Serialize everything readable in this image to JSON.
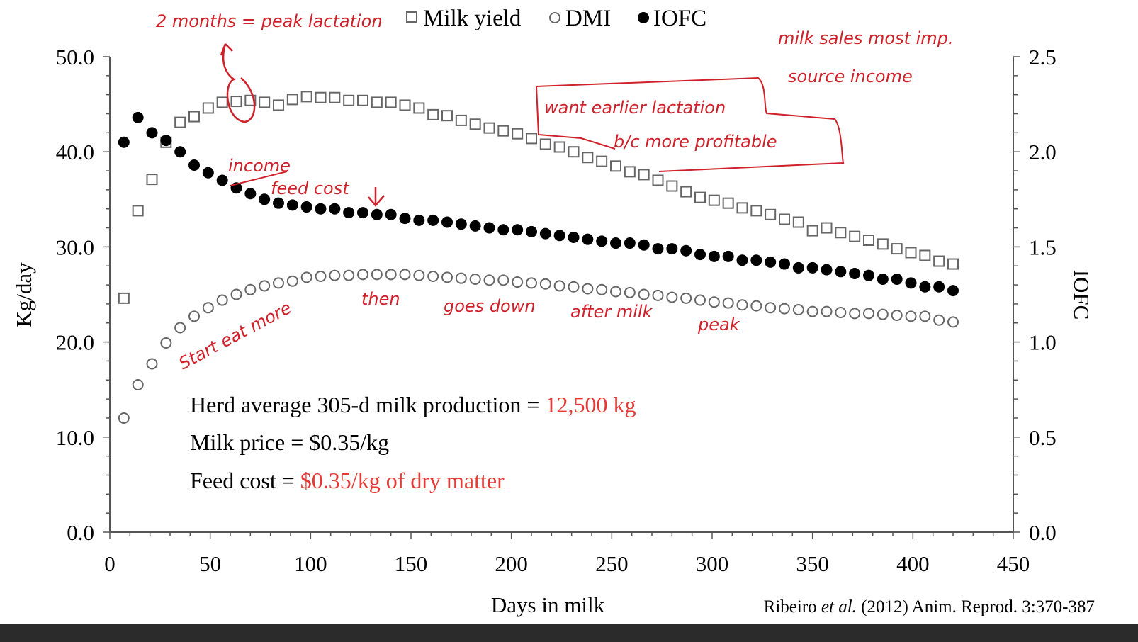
{
  "chart_data": {
    "type": "scatter",
    "xlabel": "Days in milk",
    "ylabel": "Kg/day",
    "y2label": "IOFC",
    "xlim": [
      0,
      450
    ],
    "ylim": [
      0,
      50
    ],
    "y2lim": [
      0,
      2.5
    ],
    "xticks": [
      "0",
      "50",
      "100",
      "150",
      "200",
      "250",
      "300",
      "350",
      "400",
      "450"
    ],
    "yticks": [
      "0.0",
      "10.0",
      "20.0",
      "30.0",
      "40.0",
      "50.0"
    ],
    "y2ticks": [
      "0.0",
      "0.5",
      "1.0",
      "1.5",
      "2.0",
      "2.5"
    ],
    "legend_position": "top-center",
    "x": [
      7,
      14,
      21,
      28,
      35,
      42,
      49,
      56,
      63,
      70,
      77,
      84,
      91,
      98,
      105,
      112,
      119,
      126,
      133,
      140,
      147,
      154,
      161,
      168,
      175,
      182,
      189,
      196,
      203,
      210,
      217,
      224,
      231,
      238,
      245,
      252,
      259,
      266,
      273,
      280,
      287,
      294,
      301,
      308,
      315,
      322,
      329,
      336,
      343,
      350,
      357,
      364,
      371,
      378,
      385,
      392,
      399,
      406,
      413,
      420
    ],
    "series": [
      {
        "name": "Milk yield",
        "marker": "open-square",
        "axis": "left",
        "color": "#666666",
        "values": [
          24.6,
          33.8,
          37.1,
          41.0,
          43.1,
          43.7,
          44.6,
          45.2,
          45.3,
          45.4,
          45.2,
          44.9,
          45.5,
          45.8,
          45.7,
          45.7,
          45.4,
          45.4,
          45.2,
          45.2,
          44.9,
          44.6,
          43.9,
          43.8,
          43.3,
          42.9,
          42.5,
          42.2,
          41.9,
          41.4,
          40.8,
          40.5,
          40.0,
          39.4,
          39.0,
          38.5,
          37.9,
          37.6,
          37.0,
          36.4,
          35.8,
          35.2,
          34.9,
          34.6,
          34.1,
          33.8,
          33.4,
          32.9,
          32.6,
          31.7,
          32.0,
          31.5,
          31.1,
          30.7,
          30.3,
          29.8,
          29.4,
          29.1,
          28.5,
          28.2
        ]
      },
      {
        "name": "DMI",
        "marker": "open-circle",
        "axis": "left",
        "color": "#666666",
        "values": [
          12.0,
          15.5,
          17.7,
          19.9,
          21.5,
          22.7,
          23.6,
          24.4,
          25.0,
          25.5,
          25.9,
          26.2,
          26.4,
          26.8,
          26.9,
          27.0,
          27.0,
          27.1,
          27.1,
          27.1,
          27.1,
          27.0,
          26.9,
          26.8,
          26.7,
          26.6,
          26.5,
          26.5,
          26.3,
          26.2,
          26.1,
          25.9,
          25.8,
          25.6,
          25.5,
          25.3,
          25.2,
          25.0,
          24.9,
          24.7,
          24.6,
          24.4,
          24.2,
          24.1,
          23.9,
          23.8,
          23.6,
          23.5,
          23.4,
          23.2,
          23.2,
          23.1,
          23.0,
          23.0,
          22.9,
          22.8,
          22.7,
          22.7,
          22.3,
          22.1
        ]
      },
      {
        "name": "IOFC",
        "marker": "filled-circle",
        "axis": "right",
        "color": "#000000",
        "values": [
          2.05,
          2.18,
          2.1,
          2.06,
          2.0,
          1.93,
          1.89,
          1.85,
          1.81,
          1.78,
          1.75,
          1.73,
          1.72,
          1.71,
          1.7,
          1.7,
          1.68,
          1.68,
          1.67,
          1.67,
          1.65,
          1.64,
          1.64,
          1.63,
          1.62,
          1.61,
          1.6,
          1.59,
          1.59,
          1.58,
          1.57,
          1.56,
          1.55,
          1.54,
          1.53,
          1.52,
          1.52,
          1.51,
          1.49,
          1.49,
          1.48,
          1.46,
          1.45,
          1.45,
          1.43,
          1.43,
          1.42,
          1.41,
          1.39,
          1.39,
          1.38,
          1.37,
          1.36,
          1.35,
          1.33,
          1.33,
          1.31,
          1.29,
          1.29,
          1.27
        ]
      }
    ],
    "info_lines": [
      {
        "text": "Herd average 305-d milk production = ",
        "highlight": "12,500 kg"
      },
      {
        "text": "Milk price = $0.35/kg",
        "highlight": ""
      },
      {
        "text": "Feed cost = ",
        "highlight": "$0.35/kg of dry matter"
      }
    ],
    "highlight_color": "#e53935",
    "citation": {
      "pre": "Ribeiro ",
      "italic": "et al.",
      "post": " (2012) Anim. Reprod. 3:370-387"
    },
    "annotations": [
      "2 months = peak lactation",
      "milk sales most imp.",
      "source income",
      "want earlier lactation",
      "b/c more profitable",
      "income",
      "feed cost",
      "Start eat more",
      "then",
      "goes down",
      "after milk",
      "peak"
    ],
    "annotation_color": "#d0202a"
  }
}
